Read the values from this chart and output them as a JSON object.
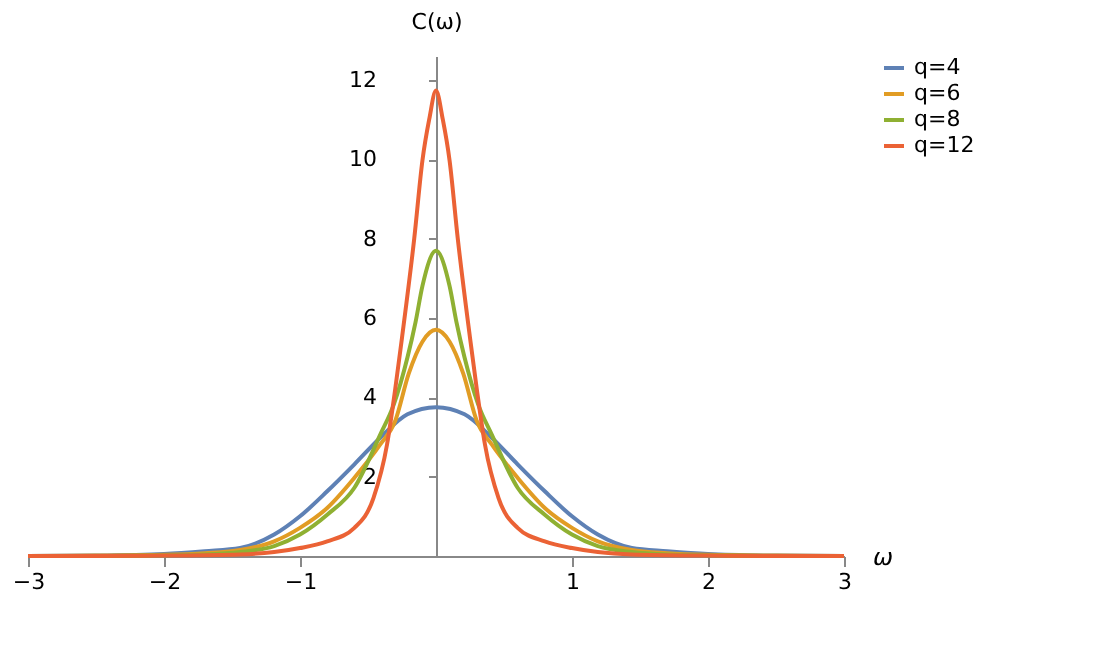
{
  "chart_data": {
    "type": "line",
    "xlabel": "ω",
    "ylabel": "C(ω)",
    "xlim": [
      -3,
      3
    ],
    "ylim": [
      0,
      12.6
    ],
    "xticks": [
      {
        "value": -3,
        "label": "−3"
      },
      {
        "value": -2,
        "label": "−2"
      },
      {
        "value": -1,
        "label": "−1"
      },
      {
        "value": 1,
        "label": "1"
      },
      {
        "value": 2,
        "label": "2"
      },
      {
        "value": 3,
        "label": "3"
      }
    ],
    "yticks": [
      2,
      4,
      6,
      8,
      10,
      12
    ],
    "grid": false,
    "legend": "right",
    "line_style": "solid",
    "marker": "none",
    "series": [
      {
        "name": "q=4",
        "color": "#5e81b5",
        "x": [
          -3,
          -2.5,
          -2,
          -1.7,
          -1.44,
          -1.19,
          -1,
          -0.8,
          -0.6,
          -0.41,
          -0.21,
          0,
          0.21,
          0.41,
          0.6,
          0.8,
          1,
          1.19,
          1.44,
          1.7,
          2,
          2.5,
          3
        ],
        "values": [
          0,
          0.01,
          0.05,
          0.12,
          0.2,
          0.54,
          1.0,
          1.63,
          2.31,
          2.98,
          3.57,
          3.75,
          3.57,
          2.98,
          2.31,
          1.63,
          1.0,
          0.54,
          0.2,
          0.12,
          0.05,
          0.01,
          0
        ]
      },
      {
        "name": "q=6",
        "color": "#e19c24",
        "x": [
          -3,
          -2.5,
          -2,
          -1.7,
          -1.44,
          -1.19,
          -1,
          -0.8,
          -0.6,
          -0.41,
          -0.3,
          -0.2,
          -0.1,
          0,
          0.1,
          0.2,
          0.3,
          0.41,
          0.6,
          0.8,
          1,
          1.19,
          1.44,
          1.7,
          2,
          2.5,
          3
        ],
        "values": [
          0,
          0.01,
          0.03,
          0.07,
          0.15,
          0.37,
          0.71,
          1.21,
          1.97,
          2.81,
          3.4,
          4.6,
          5.4,
          5.7,
          5.4,
          4.6,
          3.4,
          2.81,
          1.97,
          1.21,
          0.71,
          0.37,
          0.15,
          0.07,
          0.03,
          0.01,
          0
        ]
      },
      {
        "name": "q=8",
        "color": "#8fb032",
        "x": [
          -3,
          -2.5,
          -2,
          -1.7,
          -1.44,
          -1.19,
          -1,
          -0.8,
          -0.6,
          -0.41,
          -0.31,
          -0.21,
          -0.15,
          -0.1,
          0,
          0.1,
          0.15,
          0.21,
          0.31,
          0.41,
          0.6,
          0.8,
          1,
          1.19,
          1.44,
          1.7,
          2,
          2.5,
          3
        ],
        "values": [
          0,
          0,
          0.02,
          0.04,
          0.1,
          0.25,
          0.54,
          1.04,
          1.72,
          3.06,
          3.82,
          5.0,
          5.9,
          6.8,
          7.69,
          6.8,
          5.9,
          5.0,
          3.82,
          3.06,
          1.72,
          1.04,
          0.54,
          0.25,
          0.1,
          0.04,
          0.02,
          0,
          0
        ]
      },
      {
        "name": "q=12",
        "color": "#eb6235",
        "x": [
          -3,
          -2.5,
          -2,
          -1.44,
          -1.19,
          -1,
          -0.8,
          -0.6,
          -0.46,
          -0.36,
          -0.3,
          -0.25,
          -0.16,
          -0.1,
          -0.05,
          0,
          0.05,
          0.1,
          0.16,
          0.25,
          0.3,
          0.36,
          0.46,
          0.6,
          0.8,
          1,
          1.19,
          1.44,
          2,
          2.5,
          3
        ],
        "values": [
          0,
          0,
          0.01,
          0.04,
          0.1,
          0.2,
          0.37,
          0.71,
          1.46,
          2.81,
          4.2,
          5.5,
          8.0,
          9.96,
          11.0,
          11.73,
          11.0,
          9.96,
          8.0,
          5.5,
          4.2,
          2.81,
          1.46,
          0.71,
          0.37,
          0.2,
          0.1,
          0.04,
          0.01,
          0,
          0
        ]
      }
    ]
  }
}
